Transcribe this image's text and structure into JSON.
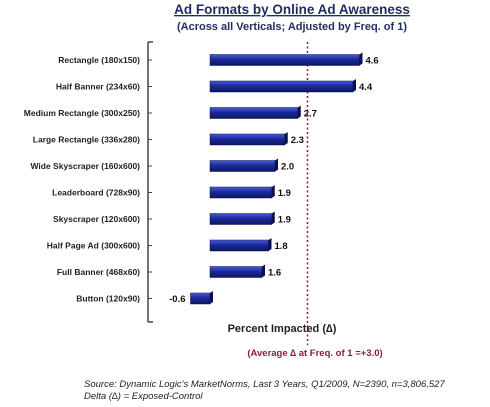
{
  "chart_data": {
    "type": "bar",
    "orientation": "horizontal",
    "title": "Ad Formats by Online Ad Awareness",
    "subtitle": "(Across all Verticals; Adjusted by Freq. of 1)",
    "categories": [
      "Rectangle (180x150)",
      "Half Banner (234x60)",
      "Medium Rectangle (300x250)",
      "Large Rectangle (336x280)",
      "Wide Skyscraper (160x600)",
      "Leaderboard (728x90)",
      "Skyscraper (120x600)",
      "Half Page Ad (300x600)",
      "Full Banner (468x60)",
      "Button (120x90)"
    ],
    "values": [
      4.6,
      4.4,
      2.7,
      2.3,
      2.0,
      1.9,
      1.9,
      1.8,
      1.6,
      -0.6
    ],
    "value_labels": [
      "4.6",
      "4.4",
      "2.7",
      "2.3",
      "2.0",
      "1.9",
      "1.9",
      "1.8",
      "1.6",
      "-0.6"
    ],
    "xlabel": "Percent Impacted (∆)",
    "reference_line": {
      "value": 3.0,
      "label": "(Average ∆ at Freq. of 1 =+3.0)",
      "style": "dotted",
      "color": "#8b1c3c"
    },
    "xlim": [
      -0.9,
      7.2
    ],
    "bar_color": "#1a2a9c",
    "grid": false
  },
  "footer": {
    "source_line1": "Source: Dynamic Logic's MarketNorms, Last 3 Years, Q1/2009, N=2390, n=3,806,527",
    "source_line2": "Delta (∆) = Exposed-Control"
  }
}
